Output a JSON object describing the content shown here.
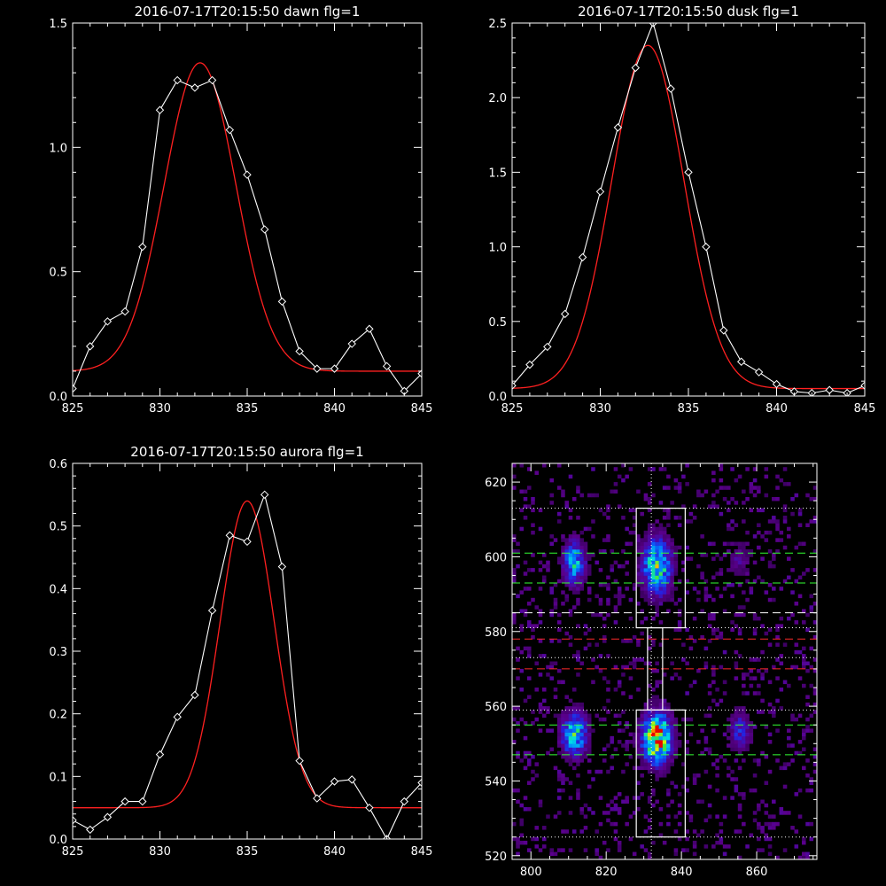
{
  "colors": {
    "background": "#000000",
    "axes": "#ffffff",
    "data_line": "#ffffff",
    "fit_line": "#ff2020",
    "box": "#ffffff",
    "green_dash": "#33ff33",
    "red_dash": "#ff2a2a",
    "white_dash": "#ffffff"
  },
  "chart_data": [
    {
      "type": "line",
      "title": "2016-07-17T20:15:50 dawn flg=1",
      "xlim": [
        825,
        845
      ],
      "ylim": [
        0,
        1.5
      ],
      "xticks": [
        "825",
        "830",
        "835",
        "840",
        "845"
      ],
      "yticks": [
        "0.0",
        "0.5",
        "1.0",
        "1.5"
      ],
      "series": [
        {
          "kind": "data",
          "marker": "diamond",
          "x": [
            825,
            826,
            827,
            828,
            829,
            830,
            831,
            832,
            833,
            834,
            835,
            836,
            837,
            838,
            839,
            840,
            841,
            842,
            843,
            844,
            845
          ],
          "y": [
            0.03,
            0.2,
            0.3,
            0.34,
            0.6,
            1.15,
            1.27,
            1.24,
            1.27,
            1.07,
            0.89,
            0.67,
            0.38,
            0.18,
            0.11,
            0.11,
            0.21,
            0.27,
            0.12,
            0.02,
            0.09
          ]
        },
        {
          "kind": "fit",
          "gaussian": {
            "amp": 1.24,
            "center": 832.3,
            "sigma": 2.05,
            "offset": 0.1
          }
        }
      ]
    },
    {
      "type": "line",
      "title": "2016-07-17T20:15:50 dusk flg=1",
      "xlim": [
        825,
        845
      ],
      "ylim": [
        0,
        2.5
      ],
      "xticks": [
        "825",
        "830",
        "835",
        "840",
        "845"
      ],
      "yticks": [
        "0.0",
        "0.5",
        "1.0",
        "1.5",
        "2.0",
        "2.5"
      ],
      "series": [
        {
          "kind": "data",
          "marker": "diamond",
          "x": [
            825,
            826,
            827,
            828,
            829,
            830,
            831,
            832,
            833,
            834,
            835,
            836,
            837,
            838,
            839,
            840,
            841,
            842,
            843,
            844,
            845
          ],
          "y": [
            0.07,
            0.21,
            0.33,
            0.55,
            0.93,
            1.37,
            1.8,
            2.2,
            2.5,
            2.06,
            1.5,
            1.0,
            0.44,
            0.23,
            0.16,
            0.08,
            0.03,
            0.02,
            0.04,
            0.02,
            0.07
          ]
        },
        {
          "kind": "fit",
          "gaussian": {
            "amp": 2.3,
            "center": 832.7,
            "sigma": 2.05,
            "offset": 0.05
          }
        }
      ]
    },
    {
      "type": "line",
      "title": "2016-07-17T20:15:50 aurora flg=1",
      "xlim": [
        825,
        845
      ],
      "ylim": [
        0,
        0.6
      ],
      "xticks": [
        "825",
        "830",
        "835",
        "840",
        "845"
      ],
      "yticks": [
        "0.0",
        "0.1",
        "0.2",
        "0.3",
        "0.4",
        "0.5",
        "0.6"
      ],
      "series": [
        {
          "kind": "data",
          "marker": "diamond",
          "x": [
            825,
            826,
            827,
            828,
            829,
            830,
            831,
            832,
            833,
            834,
            835,
            836,
            837,
            838,
            839,
            840,
            841,
            842,
            843,
            844,
            845
          ],
          "y": [
            0.03,
            0.015,
            0.035,
            0.06,
            0.06,
            0.135,
            0.195,
            0.23,
            0.365,
            0.485,
            0.475,
            0.55,
            0.435,
            0.125,
            0.065,
            0.092,
            0.095,
            0.05,
            0.0,
            0.06,
            0.09
          ]
        },
        {
          "kind": "fit",
          "gaussian": {
            "amp": 0.49,
            "center": 835.0,
            "sigma": 1.55,
            "offset": 0.05
          }
        }
      ]
    },
    {
      "type": "heatmap",
      "title": "",
      "xlim": [
        795,
        876
      ],
      "ylim": [
        519,
        625
      ],
      "xticks": [
        800,
        820,
        840,
        860
      ],
      "yticks": [
        520,
        540,
        560,
        580,
        600,
        620
      ],
      "sources": [
        {
          "x": 833,
          "y": 597,
          "sx": 2.6,
          "sy": 5.0,
          "peak": 0.72
        },
        {
          "x": 833,
          "y": 551,
          "sx": 2.6,
          "sy": 4.5,
          "peak": 1.0
        },
        {
          "x": 811,
          "y": 598,
          "sx": 2.0,
          "sy": 4.0,
          "peak": 0.55
        },
        {
          "x": 811,
          "y": 552,
          "sx": 2.3,
          "sy": 4.0,
          "peak": 0.62
        },
        {
          "x": 855,
          "y": 553,
          "sx": 2.0,
          "sy": 3.5,
          "peak": 0.3
        },
        {
          "x": 855,
          "y": 599,
          "sx": 2.0,
          "sy": 3.0,
          "peak": 0.18
        }
      ],
      "boxes": [
        {
          "x0": 828,
          "x1": 841,
          "y0": 581,
          "y1": 613
        },
        {
          "x0": 828,
          "x1": 841,
          "y0": 525,
          "y1": 559
        },
        {
          "x0": 831,
          "x1": 835,
          "y0": 559,
          "y1": 581
        }
      ],
      "vline_dotted": 832,
      "hlines": [
        {
          "y": 613,
          "style": "dotted",
          "color": "white"
        },
        {
          "y": 601,
          "style": "dashed",
          "color": "green"
        },
        {
          "y": 593,
          "style": "dashed",
          "color": "green"
        },
        {
          "y": 585,
          "style": "dashed",
          "color": "white"
        },
        {
          "y": 581,
          "style": "dotted",
          "color": "white"
        },
        {
          "y": 578,
          "style": "dashed",
          "color": "red"
        },
        {
          "y": 573,
          "style": "dotted",
          "color": "white"
        },
        {
          "y": 570,
          "style": "dashed",
          "color": "red"
        },
        {
          "y": 559,
          "style": "dotted",
          "color": "white"
        },
        {
          "y": 555,
          "style": "dashed",
          "color": "green"
        },
        {
          "y": 547,
          "style": "dashed",
          "color": "green"
        },
        {
          "y": 525,
          "style": "dotted",
          "color": "white"
        }
      ]
    }
  ]
}
